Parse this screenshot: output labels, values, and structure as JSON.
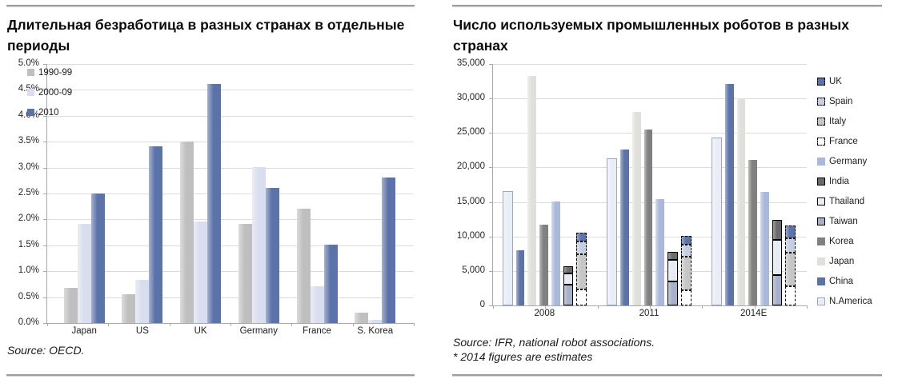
{
  "page": {
    "background": "#ffffff",
    "rule_color": "#9e9e9e"
  },
  "left_panel": {
    "title": "Длительная безработица в разных странах в отдельные периоды",
    "source": "Source: OECD."
  },
  "right_panel": {
    "title": "Число используемых промышленных роботов в разных странах",
    "source_line1": "Source: IFR, national robot associations.",
    "source_line2": "* 2014 figures are estimates"
  },
  "chart_data": [
    {
      "type": "bar",
      "title": "Длительная безработица в разных странах в отдельные периоды",
      "xlabel": "",
      "ylabel": "",
      "ylim": [
        0,
        5
      ],
      "grid": true,
      "legend_position": "top-left-inside",
      "ytick_labels": [
        "5.0%",
        "4.5%",
        "4.0%",
        "3.5%",
        "3.0%",
        "2.5%",
        "2.0%",
        "1.5%",
        "1.0%",
        "0.5%",
        "0.0%"
      ],
      "categories": [
        "Japan",
        "US",
        "UK",
        "Germany",
        "France",
        "S. Korea"
      ],
      "series": [
        {
          "name": "1990-99",
          "color": "#bfbfbf",
          "values": [
            0.67,
            0.55,
            3.5,
            1.9,
            2.2,
            0.2
          ]
        },
        {
          "name": "2000-09",
          "color": "#d9deee",
          "values": [
            1.9,
            0.83,
            1.95,
            3.0,
            0.7,
            0.05
          ]
        },
        {
          "name": "2010",
          "color": "#5b73a9",
          "values": [
            2.5,
            3.4,
            4.6,
            2.6,
            1.5,
            2.8
          ]
        }
      ]
    },
    {
      "type": "bar",
      "title": "Число используемых промышленных роботов в разных странах",
      "xlabel": "",
      "ylabel": "",
      "ylim": [
        0,
        35000
      ],
      "grid": true,
      "legend_position": "right",
      "ytick_labels": [
        "35,000",
        "30,000",
        "25,000",
        "20,000",
        "15,000",
        "10,000",
        "5,000",
        "0"
      ],
      "categories": [
        "2008",
        "2011",
        "2014E"
      ],
      "bars_order": [
        "N.America",
        "China",
        "Japan",
        "Korea",
        "Germany",
        "stack:asia",
        "stack:europe"
      ],
      "legend_order": [
        "UK",
        "Spain",
        "Italy",
        "France",
        "Germany",
        "India",
        "Thailand",
        "Taiwan",
        "Korea",
        "Japan",
        "China",
        "N.America"
      ],
      "series": [
        {
          "name": "N.America",
          "kind": "single",
          "color": "#e9edf6",
          "legend_border": "thin",
          "values": [
            16300,
            21000,
            24000
          ]
        },
        {
          "name": "China",
          "kind": "single",
          "color": "#5b73a9",
          "legend_border": "none",
          "values": [
            8000,
            22600,
            32000
          ]
        },
        {
          "name": "Japan",
          "kind": "single",
          "color": "#e0e0da",
          "legend_border": "none",
          "values": [
            33200,
            28000,
            30000
          ]
        },
        {
          "name": "Korea",
          "kind": "single",
          "color": "#808080",
          "legend_border": "none",
          "values": [
            11600,
            25500,
            21000
          ]
        },
        {
          "name": "Germany",
          "kind": "single",
          "color": "#aab9da",
          "legend_border": "none",
          "values": [
            15000,
            15400,
            16400
          ]
        },
        {
          "name": "Taiwan",
          "kind": "stack",
          "stack": "asia",
          "color": "#a6b1c9",
          "border_style": "solid",
          "legend_border": "solid",
          "values": [
            3000,
            3400,
            4400
          ]
        },
        {
          "name": "Thailand",
          "kind": "stack",
          "stack": "asia",
          "color": "#e6ebf4",
          "border_style": "solid",
          "legend_border": "solid",
          "values": [
            1600,
            3200,
            5000
          ]
        },
        {
          "name": "India",
          "kind": "stack",
          "stack": "asia",
          "color": "#6b6b6b",
          "border_style": "solid",
          "legend_border": "solid",
          "values": [
            1000,
            1100,
            3000
          ]
        },
        {
          "name": "France",
          "kind": "stack",
          "stack": "europe",
          "color": "#ffffff",
          "border_style": "dashed",
          "legend_border": "dashed",
          "values": [
            2300,
            2200,
            2700
          ]
        },
        {
          "name": "Italy",
          "kind": "stack",
          "stack": "europe",
          "color": "#c6c6c6",
          "border_style": "dashed",
          "legend_border": "dashed",
          "values": [
            5100,
            4800,
            4900
          ]
        },
        {
          "name": "Spain",
          "kind": "stack",
          "stack": "europe",
          "color": "#c5cfe4",
          "border_style": "dashed",
          "legend_border": "dashed",
          "values": [
            1800,
            1800,
            2100
          ]
        },
        {
          "name": "UK",
          "kind": "stack",
          "stack": "europe",
          "color": "#5b73a9",
          "border_style": "dashed",
          "legend_border": "dashed",
          "values": [
            1300,
            1200,
            1800
          ]
        }
      ]
    }
  ]
}
